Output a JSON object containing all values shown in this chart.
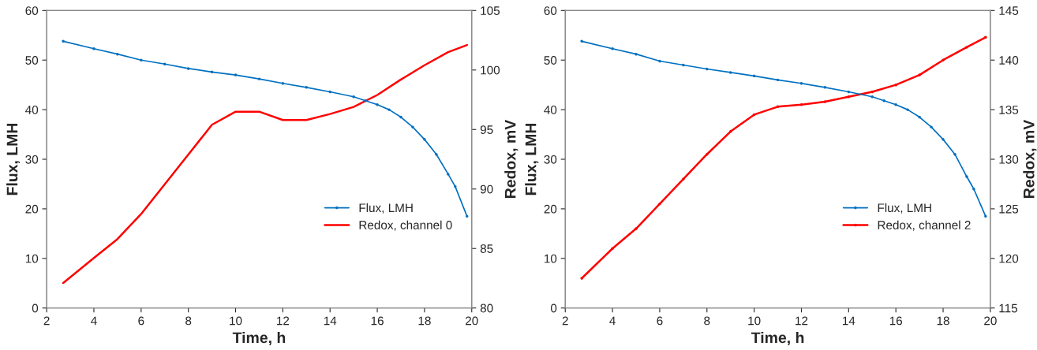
{
  "chart_data": [
    {
      "type": "line",
      "xlabel": "Time, h",
      "ylabel": "Flux, LMH",
      "y2label": "Redox, mV",
      "xlim": [
        2,
        20
      ],
      "xticks": [
        2,
        4,
        6,
        8,
        10,
        12,
        14,
        16,
        18,
        20
      ],
      "ylim": [
        0,
        60
      ],
      "yticks": [
        0,
        10,
        20,
        30,
        40,
        50,
        60
      ],
      "y2lim": [
        80,
        105
      ],
      "y2ticks": [
        80,
        85,
        90,
        95,
        100,
        105
      ],
      "legend": "bottom right",
      "grid": false,
      "series": [
        {
          "name": "Flux, LMH",
          "color": "#0070c0",
          "marker": "circle",
          "x": [
            2.7,
            4,
            5,
            6,
            7,
            8,
            9,
            10,
            11,
            12,
            13,
            14,
            15,
            15.5,
            16,
            16.5,
            17,
            17.5,
            18,
            18.5,
            19,
            19.3,
            19.8
          ],
          "values": [
            53.8,
            52.3,
            51.2,
            50,
            49.2,
            48.3,
            47.6,
            47,
            46.2,
            45.3,
            44.5,
            43.6,
            42.6,
            41.8,
            41,
            40,
            38.5,
            36.5,
            34,
            31,
            27,
            24.5,
            18.5
          ]
        },
        {
          "name": "Redox, channel 0",
          "color": "#ff0000",
          "axis": "y2",
          "marker": "none",
          "x": [
            2.7,
            4,
            5,
            6,
            7,
            8,
            9,
            10,
            11,
            12,
            13,
            14,
            15,
            16,
            17,
            18,
            19,
            19.8
          ],
          "values": [
            82.1,
            84.2,
            85.8,
            87.9,
            90.4,
            92.9,
            95.4,
            96.5,
            96.5,
            95.8,
            95.8,
            96.3,
            96.9,
            97.9,
            99.2,
            100.4,
            101.5,
            102.1
          ]
        }
      ]
    },
    {
      "type": "line",
      "xlabel": "Time, h",
      "ylabel": "Flux, LMH",
      "y2label": "Redox, mV",
      "xlim": [
        2,
        20
      ],
      "xticks": [
        2,
        4,
        6,
        8,
        10,
        12,
        14,
        16,
        18,
        20
      ],
      "ylim": [
        0,
        60
      ],
      "yticks": [
        0,
        10,
        20,
        30,
        40,
        50,
        60
      ],
      "y2lim": [
        115,
        145
      ],
      "y2ticks": [
        115,
        120,
        125,
        130,
        135,
        140,
        145
      ],
      "legend": "bottom right",
      "grid": false,
      "series": [
        {
          "name": "Flux, LMH",
          "color": "#0070c0",
          "marker": "circle",
          "x": [
            2.7,
            4,
            5,
            6,
            7,
            8,
            9,
            10,
            11,
            12,
            13,
            14,
            15,
            15.5,
            16,
            16.5,
            17,
            17.5,
            18,
            18.5,
            19,
            19.3,
            19.8
          ],
          "values": [
            53.8,
            52.3,
            51.2,
            49.8,
            49,
            48.2,
            47.5,
            46.8,
            46,
            45.3,
            44.5,
            43.6,
            42.6,
            41.8,
            41,
            40,
            38.5,
            36.5,
            34,
            31,
            26.5,
            24,
            18.5
          ]
        },
        {
          "name": "Redox, channel 2",
          "color": "#ff0000",
          "axis": "y2",
          "marker": "circle",
          "x": [
            2.7,
            4,
            5,
            6,
            7,
            8,
            9,
            10,
            11,
            12,
            13,
            14,
            15,
            16,
            17,
            18,
            19,
            19.8
          ],
          "values": [
            118,
            121,
            123,
            125.5,
            128,
            130.5,
            132.8,
            134.5,
            135.3,
            135.5,
            135.8,
            136.3,
            136.8,
            137.5,
            138.5,
            140,
            141.3,
            142.3
          ]
        }
      ]
    }
  ]
}
